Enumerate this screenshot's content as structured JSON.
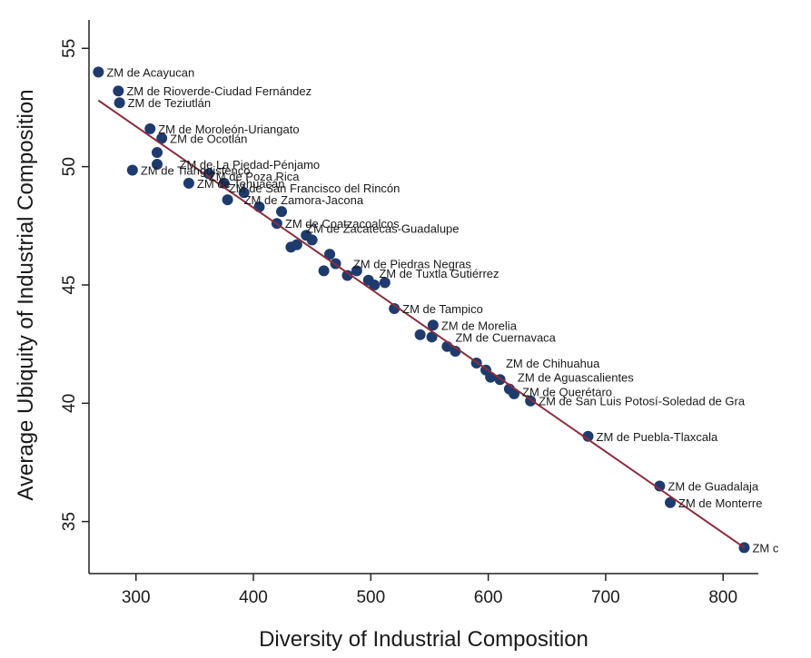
{
  "chart_data": {
    "type": "scatter",
    "xlabel": "Diversity of Industrial Composition",
    "ylabel": "Average Ubiquity of Industrial Composition",
    "xlim": [
      260,
      830
    ],
    "ylim": [
      32.8,
      56.2
    ],
    "xticks": [
      300,
      400,
      500,
      600,
      700,
      800
    ],
    "yticks": [
      35,
      40,
      45,
      50,
      55
    ],
    "grid": false,
    "marker_color": "#1f3b6e",
    "fit_line_color": "#8b2e3c",
    "fit_line": {
      "x": [
        268,
        818
      ],
      "y": [
        52.8,
        33.9
      ]
    },
    "points": [
      {
        "x": 268,
        "y": 54.0,
        "label": "ZM de Acayucan"
      },
      {
        "x": 285,
        "y": 53.2,
        "label": "ZM de Rioverde-Ciudad Fernández"
      },
      {
        "x": 286,
        "y": 52.7,
        "label": "ZM de Teziutlán"
      },
      {
        "x": 312,
        "y": 51.6,
        "label": "ZM de Moroleón-Uriangato"
      },
      {
        "x": 322,
        "y": 51.2,
        "label": "ZM de Ocotlán"
      },
      {
        "x": 318,
        "y": 50.6,
        "label": ""
      },
      {
        "x": 318,
        "y": 50.1,
        "label": ""
      },
      {
        "x": 297,
        "y": 49.85,
        "label": "ZM de Tianguistenco"
      },
      {
        "x": 345,
        "y": 49.3,
        "label": "ZM de Tehuacán"
      },
      {
        "x": 362,
        "y": 49.7,
        "label": ""
      },
      {
        "x": 375,
        "y": 49.3,
        "label": ""
      },
      {
        "x": 378,
        "y": 48.6,
        "label": ""
      },
      {
        "x": 392,
        "y": 48.9,
        "label": ""
      },
      {
        "x": 405,
        "y": 48.3,
        "label": ""
      },
      {
        "x": 424,
        "y": 48.1,
        "label": ""
      },
      {
        "x": 420,
        "y": 47.6,
        "label": "ZM de Coatzacoalcos"
      },
      {
        "x": 445,
        "y": 47.1,
        "label": ""
      },
      {
        "x": 450,
        "y": 46.9,
        "label": ""
      },
      {
        "x": 432,
        "y": 46.6,
        "label": ""
      },
      {
        "x": 437,
        "y": 46.7,
        "label": ""
      },
      {
        "x": 465,
        "y": 46.3,
        "label": ""
      },
      {
        "x": 470,
        "y": 45.9,
        "label": ""
      },
      {
        "x": 460,
        "y": 45.6,
        "label": ""
      },
      {
        "x": 480,
        "y": 45.4,
        "label": ""
      },
      {
        "x": 488,
        "y": 45.6,
        "label": ""
      },
      {
        "x": 498,
        "y": 45.2,
        "label": ""
      },
      {
        "x": 503,
        "y": 45.0,
        "label": ""
      },
      {
        "x": 512,
        "y": 45.1,
        "label": ""
      },
      {
        "x": 520,
        "y": 44.0,
        "label": "ZM de Tampico"
      },
      {
        "x": 553,
        "y": 43.3,
        "label": "ZM de Morelia"
      },
      {
        "x": 542,
        "y": 42.9,
        "label": ""
      },
      {
        "x": 552,
        "y": 42.8,
        "label": ""
      },
      {
        "x": 565,
        "y": 42.4,
        "label": ""
      },
      {
        "x": 572,
        "y": 42.2,
        "label": ""
      },
      {
        "x": 590,
        "y": 41.7,
        "label": ""
      },
      {
        "x": 598,
        "y": 41.4,
        "label": ""
      },
      {
        "x": 602,
        "y": 41.1,
        "label": ""
      },
      {
        "x": 610,
        "y": 41.0,
        "label": ""
      },
      {
        "x": 618,
        "y": 40.6,
        "label": ""
      },
      {
        "x": 622,
        "y": 40.4,
        "label": ""
      },
      {
        "x": 636,
        "y": 40.1,
        "label": "ZM de San Luis Potosí-Soledad de Gra"
      },
      {
        "x": 685,
        "y": 38.6,
        "label": "ZM de Puebla-Tlaxcala"
      },
      {
        "x": 746,
        "y": 36.5,
        "label": "ZM de Guadalaja"
      },
      {
        "x": 755,
        "y": 35.8,
        "label": "ZM de Monterre"
      },
      {
        "x": 818,
        "y": 33.9,
        "label": "ZM c"
      }
    ],
    "overlap_labels": [
      {
        "x": 330,
        "y": 50.1,
        "label": "ZM de La Piedad-Pénjamo"
      },
      {
        "x": 355,
        "y": 49.6,
        "label": "ZM de Poza Rica"
      },
      {
        "x": 372,
        "y": 49.1,
        "label": "ZM de San Francisco del Rincón"
      },
      {
        "x": 385,
        "y": 48.6,
        "label": "ZM de Zamora-Jacona"
      },
      {
        "x": 438,
        "y": 47.4,
        "label": "ZM de Zacatecas-Guadalupe"
      },
      {
        "x": 478,
        "y": 45.9,
        "label": "ZM de Piedras Negras"
      },
      {
        "x": 500,
        "y": 45.5,
        "label": "ZM de Tuxtla Gutiérrez"
      },
      {
        "x": 565,
        "y": 42.8,
        "label": "ZM de Cuernavaca"
      },
      {
        "x": 608,
        "y": 41.7,
        "label": "ZM de Chihuahua"
      },
      {
        "x": 618,
        "y": 41.1,
        "label": "ZM de Aguascalientes"
      },
      {
        "x": 622,
        "y": 40.5,
        "label": "ZM de Querétaro"
      }
    ]
  }
}
